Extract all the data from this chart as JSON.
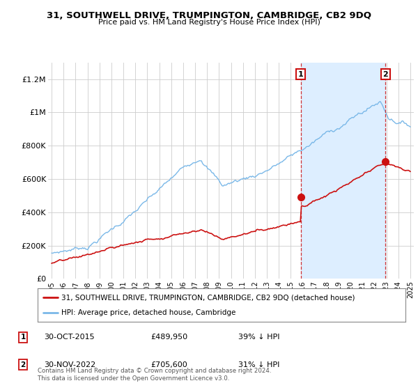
{
  "title": "31, SOUTHWELL DRIVE, TRUMPINGTON, CAMBRIDGE, CB2 9DQ",
  "subtitle": "Price paid vs. HM Land Registry's House Price Index (HPI)",
  "ylim": [
    0,
    1300000
  ],
  "yticks": [
    0,
    200000,
    400000,
    600000,
    800000,
    1000000,
    1200000
  ],
  "ytick_labels": [
    "£0",
    "£200K",
    "£400K",
    "£600K",
    "£800K",
    "£1M",
    "£1.2M"
  ],
  "hpi_color": "#7ab8e8",
  "price_color": "#cc1111",
  "vline_color": "#cc1111",
  "shade_color": "#ddeeff",
  "marker1_x": 2015.83,
  "marker2_x": 2022.92,
  "marker1_y_price": 489950,
  "marker2_y_price": 705600,
  "legend_label_price": "31, SOUTHWELL DRIVE, TRUMPINGTON, CAMBRIDGE, CB2 9DQ (detached house)",
  "legend_label_hpi": "HPI: Average price, detached house, Cambridge",
  "annotation1": "1",
  "annotation2": "2",
  "table_row1": [
    "1",
    "30-OCT-2015",
    "£489,950",
    "39% ↓ HPI"
  ],
  "table_row2": [
    "2",
    "30-NOV-2022",
    "£705,600",
    "31% ↓ HPI"
  ],
  "footer": "Contains HM Land Registry data © Crown copyright and database right 2024.\nThis data is licensed under the Open Government Licence v3.0.",
  "background_color": "#ffffff",
  "grid_color": "#cccccc",
  "xlim_left": 1994.7,
  "xlim_right": 2025.3
}
